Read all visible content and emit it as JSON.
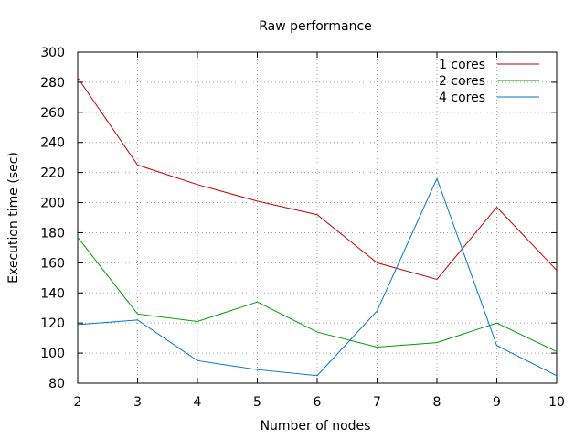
{
  "chart_data": {
    "type": "line",
    "title": "Raw performance",
    "xlabel": "Number of nodes",
    "ylabel": "Execution time (sec)",
    "x": [
      2,
      3,
      4,
      5,
      6,
      7,
      8,
      9,
      10
    ],
    "xlim": [
      2,
      10
    ],
    "ylim": [
      80,
      300
    ],
    "xticks": [
      "2",
      "3",
      "4",
      "5",
      "6",
      "7",
      "8",
      "9",
      "10"
    ],
    "yticks": [
      "80",
      "100",
      "120",
      "140",
      "160",
      "180",
      "200",
      "220",
      "240",
      "260",
      "280",
      "300"
    ],
    "grid": true,
    "legend_position": "top-right",
    "series": [
      {
        "name": "1 cores",
        "color": "#cc0000",
        "values": [
          283,
          225,
          212,
          201,
          192,
          160,
          149,
          197,
          155
        ]
      },
      {
        "name": "2 cores",
        "color": "#00a000",
        "values": [
          177,
          126,
          121,
          134,
          114,
          104,
          107,
          120,
          101
        ]
      },
      {
        "name": "4 cores",
        "color": "#0077cc",
        "values": [
          119,
          122,
          95,
          89,
          85,
          128,
          216,
          105,
          85
        ]
      }
    ]
  }
}
